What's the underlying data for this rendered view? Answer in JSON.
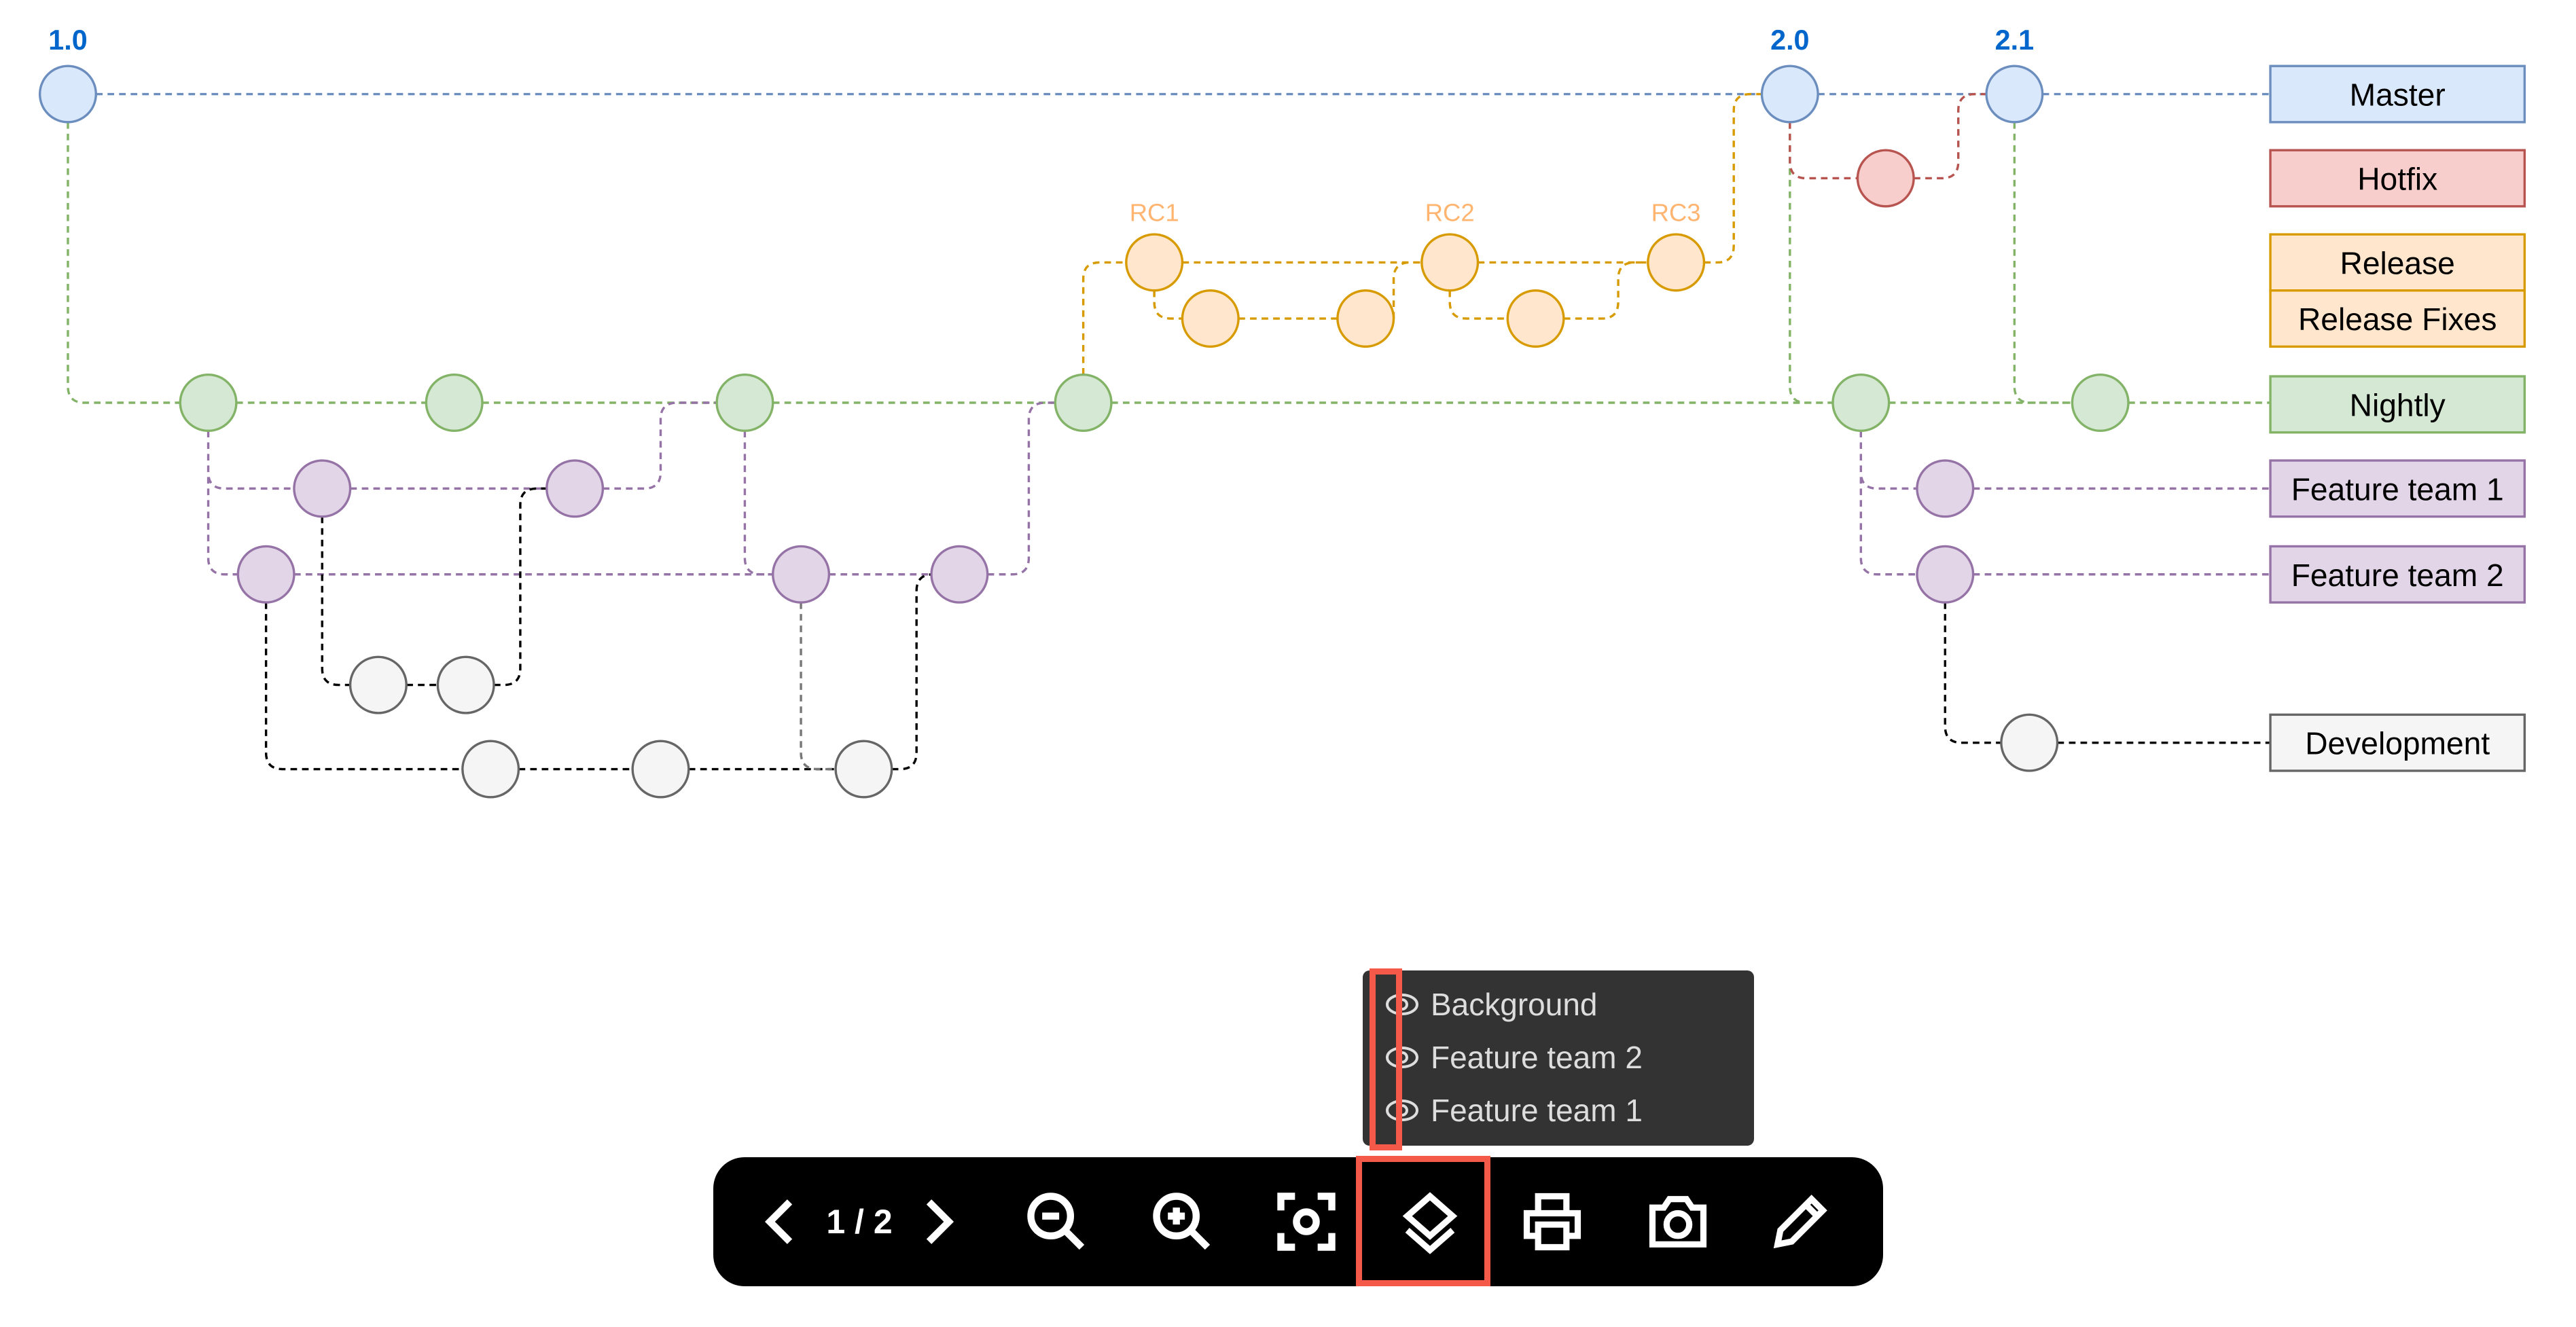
{
  "diagram": {
    "tags": {
      "v1_0": "1.0",
      "v2_0": "2.0",
      "v2_1": "2.1",
      "rc1": "RC1",
      "rc2": "RC2",
      "rc3": "RC3"
    },
    "legend": [
      {
        "label": "Master",
        "fill": "#dae8fc",
        "stroke": "#6c8ebf"
      },
      {
        "label": "Hotfix",
        "fill": "#f8cecc",
        "stroke": "#b85450"
      },
      {
        "label": "Release",
        "fill": "#ffe6cc",
        "stroke": "#d79b00"
      },
      {
        "label": "Release Fixes",
        "fill": "#ffe6cc",
        "stroke": "#d79b00"
      },
      {
        "label": "Nightly",
        "fill": "#d5e8d4",
        "stroke": "#82b366"
      },
      {
        "label": "Feature team 1",
        "fill": "#e1d5e7",
        "stroke": "#9673a6"
      },
      {
        "label": "Feature team 2",
        "fill": "#e1d5e7",
        "stroke": "#9673a6"
      },
      {
        "label": "Development",
        "fill": "#f5f5f5",
        "stroke": "#666666"
      }
    ],
    "tag_colors": {
      "version": "#0066cc",
      "rc": "#ffb570"
    }
  },
  "layers_popup": {
    "items": [
      {
        "label": "Background",
        "icon": "eye-icon"
      },
      {
        "label": "Feature team 2",
        "icon": "eye-icon"
      },
      {
        "label": "Feature team 1",
        "icon": "eye-icon"
      }
    ]
  },
  "toolbar": {
    "page_indicator": "1 / 2",
    "buttons": [
      "previous-page",
      "next-page",
      "zoom-out",
      "zoom-in",
      "fit",
      "layers",
      "print",
      "camera",
      "edit"
    ]
  },
  "highlight_color": "#f4594a"
}
